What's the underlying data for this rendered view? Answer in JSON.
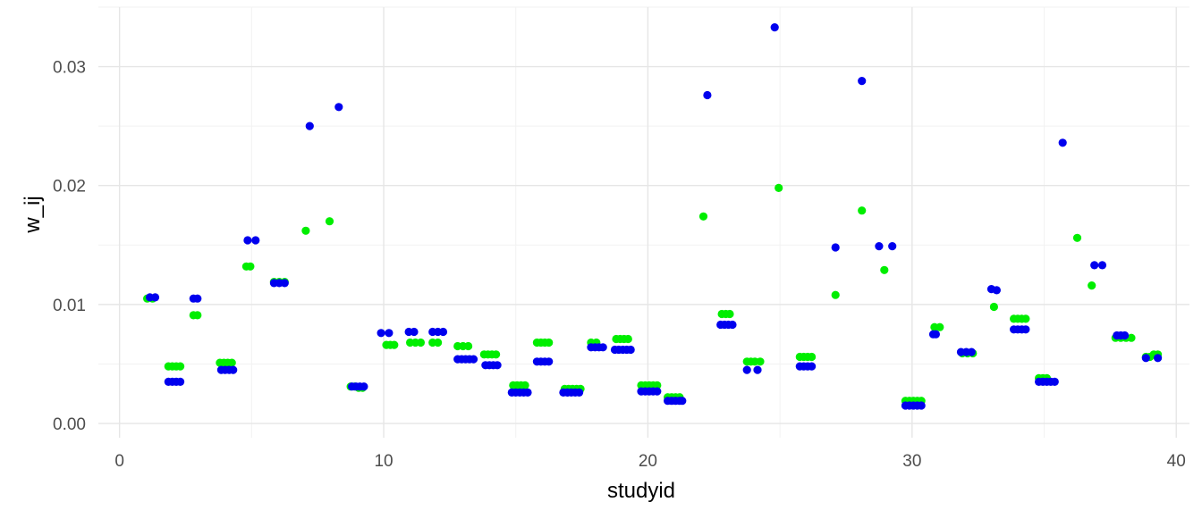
{
  "chart_data": {
    "type": "scatter",
    "title": "",
    "xlabel": "studyid",
    "ylabel": "w_ij",
    "xlim": [
      -0.8,
      40.5
    ],
    "ylim": [
      -0.0012,
      0.035
    ],
    "x_ticks": [
      {
        "value": 0,
        "label": "0"
      },
      {
        "value": 10,
        "label": "10"
      },
      {
        "value": 20,
        "label": "20"
      },
      {
        "value": 30,
        "label": "30"
      },
      {
        "value": 40,
        "label": "40"
      }
    ],
    "y_ticks": [
      {
        "value": 0.0,
        "label": "0.00"
      },
      {
        "value": 0.01,
        "label": "0.01"
      },
      {
        "value": 0.02,
        "label": "0.02"
      },
      {
        "value": 0.03,
        "label": "0.03"
      }
    ],
    "grid": true,
    "legend": "none",
    "series": [
      {
        "color": "#00ee00",
        "points": [
          [
            1.05,
            0.0105
          ],
          [
            1.25,
            0.0105
          ],
          [
            1.85,
            0.0048
          ],
          [
            2.0,
            0.0048
          ],
          [
            2.15,
            0.0048
          ],
          [
            2.3,
            0.0048
          ],
          [
            2.8,
            0.0091
          ],
          [
            2.95,
            0.0091
          ],
          [
            3.8,
            0.0051
          ],
          [
            3.95,
            0.0051
          ],
          [
            4.1,
            0.0051
          ],
          [
            4.25,
            0.0051
          ],
          [
            4.8,
            0.0132
          ],
          [
            4.95,
            0.0132
          ],
          [
            5.85,
            0.0119
          ],
          [
            6.05,
            0.0119
          ],
          [
            6.25,
            0.0119
          ],
          [
            7.05,
            0.0162
          ],
          [
            7.95,
            0.017
          ],
          [
            8.75,
            0.0031
          ],
          [
            8.9,
            0.0031
          ],
          [
            9.05,
            0.003
          ],
          [
            9.2,
            0.003
          ],
          [
            10.1,
            0.0066
          ],
          [
            10.25,
            0.0066
          ],
          [
            10.4,
            0.0066
          ],
          [
            11.0,
            0.0068
          ],
          [
            11.2,
            0.0068
          ],
          [
            11.4,
            0.0068
          ],
          [
            11.85,
            0.0068
          ],
          [
            12.05,
            0.0068
          ],
          [
            12.8,
            0.0065
          ],
          [
            13.0,
            0.0065
          ],
          [
            13.2,
            0.0065
          ],
          [
            13.8,
            0.0058
          ],
          [
            13.95,
            0.0058
          ],
          [
            14.1,
            0.0058
          ],
          [
            14.25,
            0.0058
          ],
          [
            14.9,
            0.0032
          ],
          [
            15.05,
            0.0032
          ],
          [
            15.2,
            0.0032
          ],
          [
            15.35,
            0.0032
          ],
          [
            15.8,
            0.0068
          ],
          [
            15.95,
            0.0068
          ],
          [
            16.1,
            0.0068
          ],
          [
            16.25,
            0.0068
          ],
          [
            16.85,
            0.0029
          ],
          [
            17.0,
            0.0029
          ],
          [
            17.15,
            0.0029
          ],
          [
            17.3,
            0.0029
          ],
          [
            17.45,
            0.0029
          ],
          [
            17.85,
            0.0068
          ],
          [
            18.05,
            0.0068
          ],
          [
            18.8,
            0.0071
          ],
          [
            18.95,
            0.0071
          ],
          [
            19.1,
            0.0071
          ],
          [
            19.25,
            0.0071
          ],
          [
            19.75,
            0.0032
          ],
          [
            19.9,
            0.0032
          ],
          [
            20.05,
            0.0032
          ],
          [
            20.2,
            0.0032
          ],
          [
            20.35,
            0.0032
          ],
          [
            20.75,
            0.0022
          ],
          [
            20.9,
            0.0022
          ],
          [
            21.05,
            0.0022
          ],
          [
            21.2,
            0.0022
          ],
          [
            22.1,
            0.0174
          ],
          [
            22.8,
            0.0092
          ],
          [
            22.95,
            0.0092
          ],
          [
            23.1,
            0.0092
          ],
          [
            23.75,
            0.0052
          ],
          [
            23.9,
            0.0052
          ],
          [
            24.05,
            0.0052
          ],
          [
            24.25,
            0.0052
          ],
          [
            24.95,
            0.0198
          ],
          [
            25.75,
            0.0056
          ],
          [
            25.9,
            0.0056
          ],
          [
            26.05,
            0.0056
          ],
          [
            26.2,
            0.0056
          ],
          [
            27.1,
            0.0108
          ],
          [
            28.1,
            0.0179
          ],
          [
            28.95,
            0.0129
          ],
          [
            29.75,
            0.0019
          ],
          [
            29.9,
            0.0019
          ],
          [
            30.05,
            0.0019
          ],
          [
            30.2,
            0.0019
          ],
          [
            30.35,
            0.0019
          ],
          [
            30.85,
            0.0081
          ],
          [
            31.05,
            0.0081
          ],
          [
            31.9,
            0.0059
          ],
          [
            32.1,
            0.0059
          ],
          [
            32.3,
            0.0059
          ],
          [
            33.1,
            0.0098
          ],
          [
            33.85,
            0.0088
          ],
          [
            34.0,
            0.0088
          ],
          [
            34.15,
            0.0088
          ],
          [
            34.3,
            0.0088
          ],
          [
            34.8,
            0.0038
          ],
          [
            34.95,
            0.0038
          ],
          [
            35.1,
            0.0038
          ],
          [
            36.25,
            0.0156
          ],
          [
            36.8,
            0.0116
          ],
          [
            37.7,
            0.0072
          ],
          [
            37.9,
            0.0072
          ],
          [
            38.1,
            0.0072
          ],
          [
            38.3,
            0.0072
          ],
          [
            38.85,
            0.0056
          ],
          [
            39.0,
            0.0056
          ],
          [
            39.15,
            0.0058
          ],
          [
            39.3,
            0.0058
          ]
        ]
      },
      {
        "color": "#0000ee",
        "points": [
          [
            1.15,
            0.0106
          ],
          [
            1.35,
            0.0106
          ],
          [
            1.85,
            0.0035
          ],
          [
            2.0,
            0.0035
          ],
          [
            2.15,
            0.0035
          ],
          [
            2.3,
            0.0035
          ],
          [
            2.8,
            0.0105
          ],
          [
            2.95,
            0.0105
          ],
          [
            3.85,
            0.0045
          ],
          [
            4.0,
            0.0045
          ],
          [
            4.15,
            0.0045
          ],
          [
            4.3,
            0.0045
          ],
          [
            4.85,
            0.0154
          ],
          [
            5.15,
            0.0154
          ],
          [
            5.85,
            0.0118
          ],
          [
            6.05,
            0.0118
          ],
          [
            6.25,
            0.0118
          ],
          [
            7.2,
            0.025
          ],
          [
            8.3,
            0.0266
          ],
          [
            8.8,
            0.0031
          ],
          [
            8.95,
            0.0031
          ],
          [
            9.1,
            0.0031
          ],
          [
            9.25,
            0.0031
          ],
          [
            9.9,
            0.0076
          ],
          [
            10.2,
            0.0076
          ],
          [
            10.95,
            0.0077
          ],
          [
            11.15,
            0.0077
          ],
          [
            11.85,
            0.0077
          ],
          [
            12.05,
            0.0077
          ],
          [
            12.25,
            0.0077
          ],
          [
            12.8,
            0.0054
          ],
          [
            12.95,
            0.0054
          ],
          [
            13.1,
            0.0054
          ],
          [
            13.25,
            0.0054
          ],
          [
            13.4,
            0.0054
          ],
          [
            13.85,
            0.0049
          ],
          [
            14.0,
            0.0049
          ],
          [
            14.15,
            0.0049
          ],
          [
            14.3,
            0.0049
          ],
          [
            14.85,
            0.0026
          ],
          [
            15.0,
            0.0026
          ],
          [
            15.15,
            0.0026
          ],
          [
            15.3,
            0.0026
          ],
          [
            15.45,
            0.0026
          ],
          [
            15.8,
            0.0052
          ],
          [
            15.95,
            0.0052
          ],
          [
            16.1,
            0.0052
          ],
          [
            16.25,
            0.0052
          ],
          [
            16.8,
            0.0026
          ],
          [
            16.95,
            0.0026
          ],
          [
            17.1,
            0.0026
          ],
          [
            17.25,
            0.0026
          ],
          [
            17.4,
            0.0026
          ],
          [
            17.85,
            0.0064
          ],
          [
            18.0,
            0.0064
          ],
          [
            18.15,
            0.0064
          ],
          [
            18.3,
            0.0064
          ],
          [
            18.75,
            0.0062
          ],
          [
            18.9,
            0.0062
          ],
          [
            19.05,
            0.0062
          ],
          [
            19.2,
            0.0062
          ],
          [
            19.35,
            0.0062
          ],
          [
            19.75,
            0.0027
          ],
          [
            19.9,
            0.0027
          ],
          [
            20.05,
            0.0027
          ],
          [
            20.2,
            0.0027
          ],
          [
            20.35,
            0.0027
          ],
          [
            20.75,
            0.0019
          ],
          [
            20.9,
            0.0019
          ],
          [
            21.05,
            0.0019
          ],
          [
            21.2,
            0.0019
          ],
          [
            21.3,
            0.0019
          ],
          [
            22.25,
            0.0276
          ],
          [
            22.75,
            0.0083
          ],
          [
            22.9,
            0.0083
          ],
          [
            23.05,
            0.0083
          ],
          [
            23.2,
            0.0083
          ],
          [
            23.75,
            0.0045
          ],
          [
            24.15,
            0.0045
          ],
          [
            24.8,
            0.0333
          ],
          [
            25.75,
            0.0048
          ],
          [
            25.9,
            0.0048
          ],
          [
            26.05,
            0.0048
          ],
          [
            26.2,
            0.0048
          ],
          [
            27.1,
            0.0148
          ],
          [
            28.1,
            0.0288
          ],
          [
            28.75,
            0.0149
          ],
          [
            29.25,
            0.0149
          ],
          [
            29.75,
            0.0015
          ],
          [
            29.9,
            0.0015
          ],
          [
            30.05,
            0.0015
          ],
          [
            30.2,
            0.0015
          ],
          [
            30.35,
            0.0015
          ],
          [
            30.8,
            0.0075
          ],
          [
            30.9,
            0.0075
          ],
          [
            31.85,
            0.006
          ],
          [
            32.05,
            0.006
          ],
          [
            32.25,
            0.006
          ],
          [
            33.0,
            0.0113
          ],
          [
            33.2,
            0.0112
          ],
          [
            33.85,
            0.0079
          ],
          [
            34.0,
            0.0079
          ],
          [
            34.15,
            0.0079
          ],
          [
            34.3,
            0.0079
          ],
          [
            34.8,
            0.0035
          ],
          [
            34.95,
            0.0035
          ],
          [
            35.1,
            0.0035
          ],
          [
            35.25,
            0.0035
          ],
          [
            35.4,
            0.0035
          ],
          [
            35.7,
            0.0236
          ],
          [
            36.9,
            0.0133
          ],
          [
            37.2,
            0.0133
          ],
          [
            37.75,
            0.0074
          ],
          [
            37.9,
            0.0074
          ],
          [
            38.05,
            0.0074
          ],
          [
            38.85,
            0.0055
          ],
          [
            39.3,
            0.0055
          ]
        ]
      }
    ]
  }
}
